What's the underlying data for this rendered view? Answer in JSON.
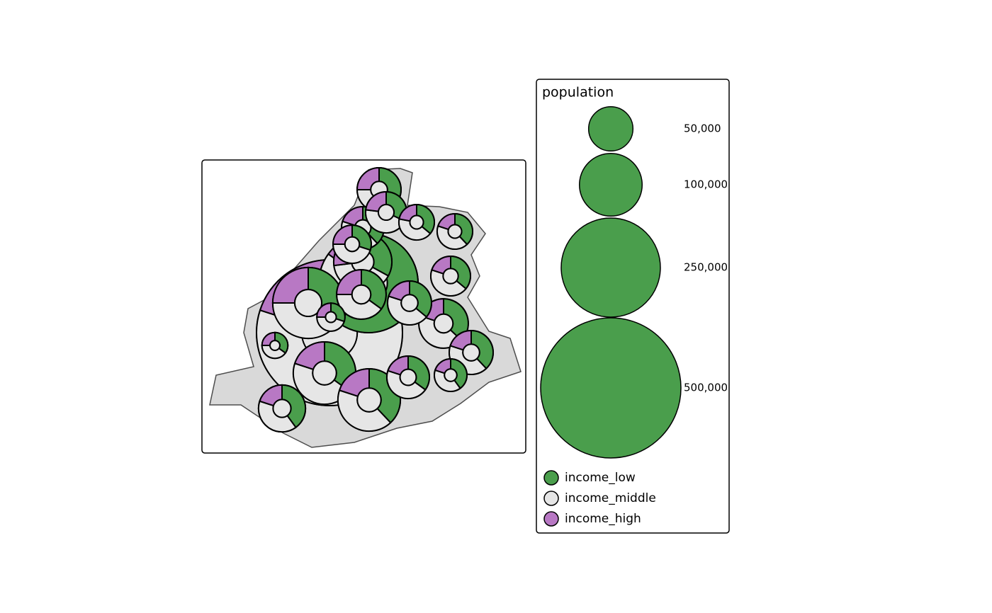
{
  "legend": {
    "title": "population",
    "sizes": [
      {
        "value": 50000,
        "label": "50,000"
      },
      {
        "value": 100000,
        "label": "100,000"
      },
      {
        "value": 250000,
        "label": "250,000"
      },
      {
        "value": 500000,
        "label": "500,000"
      }
    ]
  },
  "categories": [
    {
      "name": "income_low",
      "color": "#4a9e4c"
    },
    {
      "name": "income_middle",
      "color": "#e6e6e6"
    },
    {
      "name": "income_high",
      "color": "#b878c4"
    }
  ],
  "glyphs": [
    {
      "population": 541000,
      "shares": [
        20,
        60,
        20
      ]
    },
    {
      "population": 250000,
      "shares": [
        60,
        25,
        15
      ]
    },
    {
      "population": 128000,
      "shares": [
        30,
        45,
        25
      ]
    },
    {
      "population": 99000,
      "shares": [
        35,
        45,
        20
      ]
    },
    {
      "population": 99000,
      "shares": [
        38,
        42,
        20
      ]
    },
    {
      "population": 86000,
      "shares": [
        33,
        40,
        27
      ]
    },
    {
      "population": 62000,
      "shares": [
        35,
        40,
        25
      ]
    },
    {
      "population": 62000,
      "shares": [
        37,
        43,
        20
      ]
    },
    {
      "population": 56000,
      "shares": [
        40,
        40,
        20
      ]
    },
    {
      "population": 49000,
      "shares": [
        30,
        45,
        25
      ]
    },
    {
      "population": 49000,
      "shares": [
        36,
        44,
        20
      ]
    },
    {
      "population": 49000,
      "shares": [
        38,
        42,
        20
      ]
    },
    {
      "population": 46000,
      "shares": [
        38,
        42,
        20
      ]
    },
    {
      "population": 46000,
      "shares": [
        35,
        45,
        20
      ]
    },
    {
      "population": 43000,
      "shares": [
        32,
        45,
        23
      ]
    },
    {
      "population": 40000,
      "shares": [
        36,
        44,
        20
      ]
    },
    {
      "population": 37000,
      "shares": [
        30,
        45,
        25
      ]
    },
    {
      "population": 32000,
      "shares": [
        36,
        42,
        22
      ]
    },
    {
      "population": 32000,
      "shares": [
        38,
        42,
        20
      ]
    },
    {
      "population": 27000,
      "shares": [
        40,
        40,
        20
      ]
    },
    {
      "population": 20000,
      "shares": [
        30,
        45,
        25
      ]
    },
    {
      "population": 17000,
      "shares": [
        35,
        40,
        25
      ]
    }
  ]
}
